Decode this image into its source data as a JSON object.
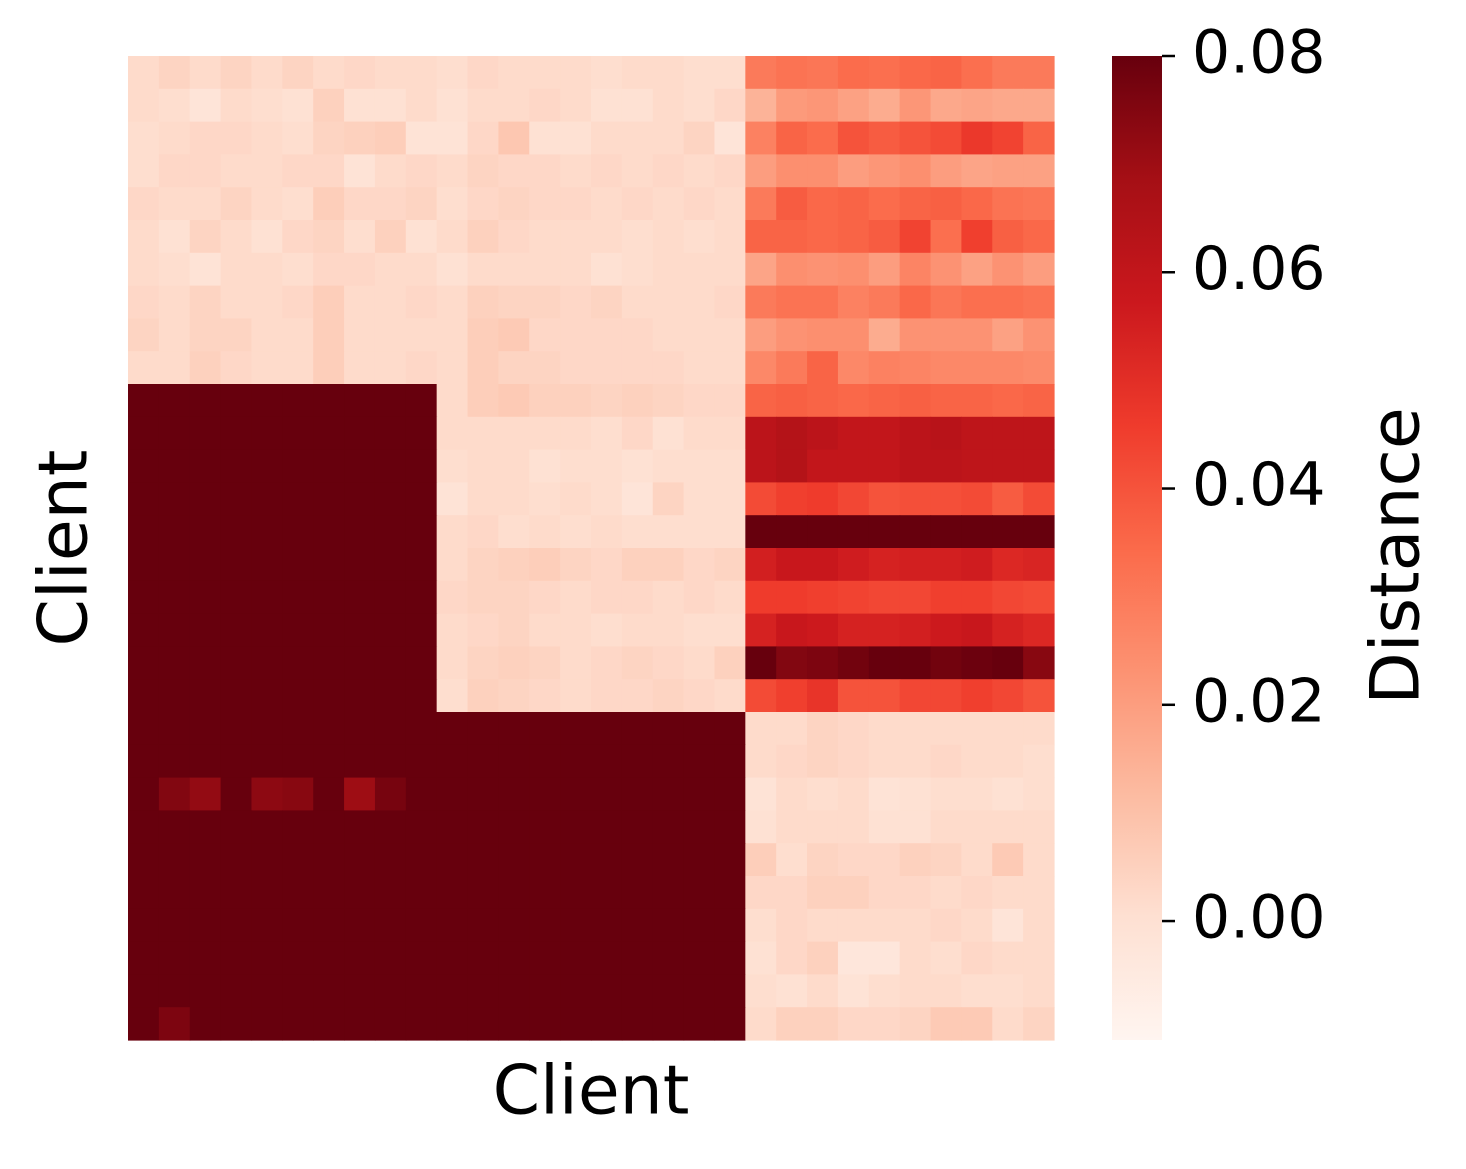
{
  "chart_data": {
    "type": "heatmap",
    "xlabel": "Client",
    "ylabel": "Client",
    "colorbar_label": "Distance",
    "zlim": [
      -0.011,
      0.08
    ],
    "colorbar_ticks": [
      {
        "value": 0,
        "label": "0.00"
      },
      {
        "value": 0.02,
        "label": "0.02"
      },
      {
        "value": 0.04,
        "label": "0.04"
      },
      {
        "value": 0.06,
        "label": "0.06"
      },
      {
        "value": 0.08,
        "label": "0.08"
      }
    ],
    "colormap": [
      "#fff5f0",
      "#fee0d2",
      "#fcbba1",
      "#fc9272",
      "#fb6a4a",
      "#ef3b2c",
      "#cb181d",
      "#a50f15",
      "#67000d"
    ],
    "values": [
      [
        0.002,
        0.004,
        0.002,
        0.004,
        0.002,
        0.004,
        0.002,
        0.003,
        0.002,
        0.002,
        0.001,
        0.003,
        0.002,
        0.002,
        0.002,
        0.001,
        0.002,
        0.002,
        0.001,
        0.001,
        0.03,
        0.032,
        0.031,
        0.034,
        0.033,
        0.035,
        0.036,
        0.033,
        0.03,
        0.03
      ],
      [
        0.002,
        0.001,
        -0.002,
        0.002,
        0.001,
        0.0,
        0.005,
        0.0,
        0.0,
        0.002,
        0.0,
        0.002,
        0.002,
        0.003,
        0.002,
        0.0,
        0.0,
        0.002,
        0.001,
        0.003,
        0.014,
        0.021,
        0.022,
        0.019,
        0.016,
        0.022,
        0.017,
        0.018,
        0.017,
        0.017
      ],
      [
        0.001,
        0.002,
        0.003,
        0.003,
        0.002,
        0.001,
        0.004,
        0.005,
        0.006,
        -0.001,
        -0.001,
        0.003,
        0.008,
        0.0,
        0.0,
        0.002,
        0.002,
        0.002,
        0.004,
        -0.002,
        0.028,
        0.036,
        0.034,
        0.04,
        0.038,
        0.04,
        0.042,
        0.047,
        0.044,
        0.036
      ],
      [
        0.001,
        0.003,
        0.003,
        0.002,
        0.002,
        0.003,
        0.003,
        -0.001,
        0.002,
        0.003,
        0.002,
        0.004,
        0.003,
        0.003,
        0.002,
        0.003,
        0.002,
        0.003,
        0.002,
        0.003,
        0.02,
        0.024,
        0.024,
        0.02,
        0.022,
        0.024,
        0.02,
        0.018,
        0.019,
        0.019
      ],
      [
        0.003,
        0.002,
        0.002,
        0.004,
        0.002,
        0.001,
        0.006,
        0.003,
        0.003,
        0.004,
        0.001,
        0.003,
        0.004,
        0.003,
        0.003,
        0.002,
        0.003,
        0.002,
        0.003,
        0.002,
        0.03,
        0.038,
        0.035,
        0.036,
        0.034,
        0.036,
        0.037,
        0.035,
        0.032,
        0.031
      ],
      [
        0.002,
        0.0,
        0.004,
        0.002,
        0.0,
        0.003,
        0.004,
        0.001,
        0.005,
        0.0,
        0.002,
        0.005,
        0.003,
        0.002,
        0.002,
        0.002,
        0.001,
        0.002,
        0.001,
        0.002,
        0.036,
        0.036,
        0.035,
        0.036,
        0.038,
        0.044,
        0.033,
        0.045,
        0.037,
        0.035
      ],
      [
        0.002,
        0.001,
        -0.001,
        0.002,
        0.002,
        0.001,
        0.003,
        0.003,
        0.002,
        0.002,
        0.0,
        0.002,
        0.002,
        0.002,
        0.002,
        0.0,
        0.001,
        0.002,
        0.002,
        0.002,
        0.018,
        0.024,
        0.023,
        0.024,
        0.02,
        0.027,
        0.023,
        0.019,
        0.023,
        0.02
      ],
      [
        0.003,
        0.002,
        0.004,
        0.002,
        0.002,
        0.003,
        0.006,
        0.002,
        0.002,
        0.003,
        0.002,
        0.005,
        0.004,
        0.004,
        0.003,
        0.004,
        0.002,
        0.002,
        0.002,
        0.003,
        0.03,
        0.032,
        0.032,
        0.028,
        0.03,
        0.035,
        0.031,
        0.033,
        0.033,
        0.032
      ],
      [
        0.004,
        0.002,
        0.004,
        0.004,
        0.002,
        0.002,
        0.006,
        0.002,
        0.002,
        0.002,
        0.002,
        0.006,
        0.007,
        0.003,
        0.003,
        0.003,
        0.003,
        0.002,
        0.002,
        0.002,
        0.02,
        0.023,
        0.024,
        0.024,
        0.016,
        0.023,
        0.023,
        0.023,
        0.019,
        0.023
      ],
      [
        0.002,
        0.002,
        0.005,
        0.003,
        0.002,
        0.002,
        0.006,
        0.002,
        0.002,
        0.003,
        0.002,
        0.006,
        0.004,
        0.004,
        0.003,
        0.003,
        0.003,
        0.003,
        0.002,
        0.002,
        0.026,
        0.03,
        0.036,
        0.026,
        0.028,
        0.027,
        0.026,
        0.026,
        0.026,
        0.025
      ],
      [
        0.09,
        0.09,
        0.09,
        0.09,
        0.09,
        0.09,
        0.09,
        0.09,
        0.09,
        0.09,
        0.002,
        0.006,
        0.007,
        0.005,
        0.005,
        0.004,
        0.005,
        0.004,
        0.003,
        0.003,
        0.036,
        0.037,
        0.036,
        0.035,
        0.036,
        0.037,
        0.036,
        0.036,
        0.035,
        0.036
      ],
      [
        0.09,
        0.09,
        0.09,
        0.09,
        0.09,
        0.09,
        0.09,
        0.09,
        0.09,
        0.09,
        0.002,
        0.002,
        0.002,
        0.002,
        0.002,
        0.001,
        0.003,
        0.0,
        0.002,
        0.002,
        0.062,
        0.064,
        0.062,
        0.06,
        0.06,
        0.062,
        0.063,
        0.061,
        0.061,
        0.061
      ],
      [
        0.09,
        0.09,
        0.09,
        0.09,
        0.09,
        0.09,
        0.09,
        0.09,
        0.09,
        0.09,
        0.001,
        0.002,
        0.002,
        0.0,
        0.001,
        0.001,
        0.0,
        0.001,
        0.001,
        0.001,
        0.062,
        0.064,
        0.06,
        0.06,
        0.06,
        0.062,
        0.062,
        0.061,
        0.061,
        0.061
      ],
      [
        0.09,
        0.09,
        0.09,
        0.09,
        0.09,
        0.09,
        0.09,
        0.09,
        0.09,
        0.09,
        -0.001,
        0.002,
        0.002,
        0.001,
        0.002,
        0.001,
        -0.002,
        0.004,
        0.001,
        0.001,
        0.042,
        0.045,
        0.046,
        0.043,
        0.04,
        0.041,
        0.041,
        0.042,
        0.038,
        0.042
      ],
      [
        0.09,
        0.09,
        0.09,
        0.09,
        0.09,
        0.09,
        0.09,
        0.09,
        0.09,
        0.09,
        0.002,
        0.003,
        0.001,
        0.002,
        0.001,
        0.002,
        0.001,
        0.001,
        0.001,
        0.001,
        0.085,
        0.085,
        0.085,
        0.085,
        0.085,
        0.085,
        0.085,
        0.085,
        0.085,
        0.085
      ],
      [
        0.09,
        0.09,
        0.09,
        0.09,
        0.09,
        0.09,
        0.09,
        0.09,
        0.09,
        0.09,
        0.002,
        0.004,
        0.005,
        0.006,
        0.004,
        0.003,
        0.005,
        0.005,
        0.003,
        0.004,
        0.055,
        0.058,
        0.058,
        0.056,
        0.054,
        0.055,
        0.055,
        0.056,
        0.052,
        0.053
      ],
      [
        0.09,
        0.09,
        0.09,
        0.09,
        0.09,
        0.09,
        0.09,
        0.09,
        0.09,
        0.09,
        0.003,
        0.004,
        0.004,
        0.003,
        0.002,
        0.003,
        0.003,
        0.002,
        0.003,
        0.002,
        0.046,
        0.046,
        0.045,
        0.044,
        0.043,
        0.043,
        0.045,
        0.045,
        0.043,
        0.042
      ],
      [
        0.09,
        0.09,
        0.09,
        0.09,
        0.09,
        0.09,
        0.09,
        0.09,
        0.09,
        0.09,
        0.002,
        0.003,
        0.004,
        0.002,
        0.002,
        0.001,
        0.002,
        0.002,
        0.001,
        0.001,
        0.054,
        0.058,
        0.057,
        0.054,
        0.054,
        0.055,
        0.057,
        0.058,
        0.054,
        0.052
      ],
      [
        0.09,
        0.09,
        0.09,
        0.09,
        0.09,
        0.09,
        0.09,
        0.09,
        0.09,
        0.09,
        0.002,
        0.004,
        0.005,
        0.004,
        0.002,
        0.003,
        0.004,
        0.003,
        0.002,
        0.005,
        0.082,
        0.075,
        0.076,
        0.078,
        0.08,
        0.085,
        0.078,
        0.079,
        0.082,
        0.074
      ],
      [
        0.09,
        0.09,
        0.09,
        0.09,
        0.09,
        0.09,
        0.09,
        0.09,
        0.09,
        0.09,
        0.001,
        0.005,
        0.004,
        0.003,
        0.002,
        0.003,
        0.003,
        0.004,
        0.003,
        0.002,
        0.042,
        0.045,
        0.048,
        0.04,
        0.04,
        0.043,
        0.043,
        0.045,
        0.043,
        0.04
      ],
      [
        0.09,
        0.09,
        0.09,
        0.09,
        0.09,
        0.09,
        0.09,
        0.09,
        0.09,
        0.09,
        0.09,
        0.09,
        0.09,
        0.09,
        0.09,
        0.09,
        0.09,
        0.09,
        0.09,
        0.09,
        0.002,
        0.002,
        0.004,
        0.003,
        0.002,
        0.002,
        0.002,
        0.002,
        0.002,
        0.002
      ],
      [
        0.09,
        0.09,
        0.09,
        0.09,
        0.09,
        0.09,
        0.09,
        0.09,
        0.09,
        0.09,
        0.09,
        0.09,
        0.09,
        0.09,
        0.09,
        0.09,
        0.09,
        0.09,
        0.09,
        0.09,
        0.002,
        0.003,
        0.004,
        0.003,
        0.002,
        0.002,
        0.003,
        0.002,
        0.002,
        0.001
      ],
      [
        0.09,
        0.075,
        0.072,
        0.09,
        0.073,
        0.074,
        0.09,
        0.07,
        0.077,
        0.09,
        0.09,
        0.09,
        0.09,
        0.09,
        0.09,
        0.09,
        0.09,
        0.09,
        0.09,
        0.09,
        -0.001,
        0.002,
        0.001,
        0.002,
        -0.001,
        0.0,
        0.001,
        0.001,
        0.0,
        0.001
      ],
      [
        0.09,
        0.09,
        0.09,
        0.09,
        0.09,
        0.09,
        0.09,
        0.09,
        0.09,
        0.09,
        0.09,
        0.09,
        0.09,
        0.09,
        0.09,
        0.09,
        0.09,
        0.09,
        0.09,
        0.09,
        0.0,
        0.002,
        0.002,
        0.002,
        0.0,
        0.0,
        0.002,
        0.002,
        0.002,
        0.002
      ],
      [
        0.09,
        0.09,
        0.09,
        0.09,
        0.09,
        0.09,
        0.09,
        0.09,
        0.09,
        0.09,
        0.09,
        0.09,
        0.09,
        0.09,
        0.09,
        0.09,
        0.09,
        0.09,
        0.09,
        0.09,
        0.006,
        0.001,
        0.004,
        0.003,
        0.003,
        0.005,
        0.004,
        0.002,
        0.007,
        0.002
      ],
      [
        0.09,
        0.09,
        0.09,
        0.09,
        0.09,
        0.09,
        0.09,
        0.09,
        0.09,
        0.09,
        0.09,
        0.09,
        0.09,
        0.09,
        0.09,
        0.09,
        0.09,
        0.09,
        0.09,
        0.09,
        0.003,
        0.003,
        0.005,
        0.005,
        0.003,
        0.003,
        0.002,
        0.003,
        0.002,
        0.002
      ],
      [
        0.09,
        0.09,
        0.09,
        0.09,
        0.09,
        0.09,
        0.09,
        0.09,
        0.09,
        0.09,
        0.09,
        0.09,
        0.09,
        0.09,
        0.09,
        0.09,
        0.09,
        0.09,
        0.09,
        0.09,
        0.001,
        0.003,
        0.002,
        0.002,
        0.002,
        0.002,
        0.003,
        0.002,
        -0.002,
        0.002
      ],
      [
        0.09,
        0.09,
        0.09,
        0.09,
        0.09,
        0.09,
        0.09,
        0.09,
        0.09,
        0.09,
        0.09,
        0.09,
        0.09,
        0.09,
        0.09,
        0.09,
        0.09,
        0.09,
        0.09,
        0.09,
        0.0,
        0.003,
        0.005,
        -0.003,
        -0.003,
        0.002,
        0.001,
        0.003,
        0.002,
        0.002
      ],
      [
        0.09,
        0.09,
        0.09,
        0.09,
        0.09,
        0.09,
        0.09,
        0.09,
        0.09,
        0.09,
        0.09,
        0.09,
        0.09,
        0.09,
        0.09,
        0.09,
        0.09,
        0.09,
        0.09,
        0.09,
        0.001,
        0.0,
        0.002,
        -0.001,
        0.001,
        0.002,
        0.002,
        0.001,
        0.001,
        0.002
      ],
      [
        0.09,
        0.076,
        0.09,
        0.09,
        0.09,
        0.082,
        0.09,
        0.09,
        0.09,
        0.09,
        0.09,
        0.09,
        0.09,
        0.09,
        0.09,
        0.09,
        0.09,
        0.09,
        0.09,
        0.09,
        0.002,
        0.005,
        0.005,
        0.003,
        0.003,
        0.004,
        0.007,
        0.007,
        0.002,
        0.004
      ]
    ]
  }
}
